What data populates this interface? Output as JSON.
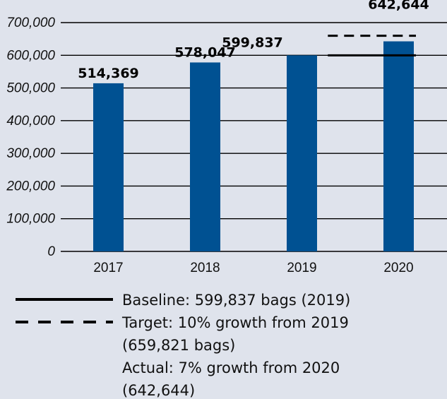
{
  "chart_data": {
    "type": "bar",
    "categories": [
      "2017",
      "2018",
      "2019",
      "2020"
    ],
    "values": [
      514369,
      578047,
      599837,
      642644
    ],
    "data_labels": [
      "514,369",
      "578,047",
      "599,837",
      "642,644"
    ],
    "ylim": [
      0,
      700000
    ],
    "yticks": [
      0,
      100000,
      200000,
      300000,
      400000,
      500000,
      600000,
      700000
    ],
    "ytick_labels": [
      "0",
      "100,000",
      "200,000",
      "300,000",
      "400,000",
      "500,000",
      "600,000",
      "700,000"
    ],
    "grid": true,
    "bar_color": "#005192",
    "reference_lines": [
      {
        "name": "baseline",
        "value": 599837,
        "style": "solid",
        "span_category": "2020"
      },
      {
        "name": "target",
        "value": 659821,
        "style": "dashed",
        "span_category": "2020"
      }
    ],
    "legend": {
      "placement": "bottom",
      "entries": [
        {
          "style": "solid",
          "lines": [
            "Baseline: 599,837 bags (2019)"
          ]
        },
        {
          "style": "dashed",
          "lines": [
            "Target: 10% growth from 2019",
            "(659,821 bags)"
          ]
        },
        {
          "style": "none",
          "lines": [
            "Actual: 7% growth from 2020",
            "(642,644)"
          ]
        }
      ]
    }
  }
}
